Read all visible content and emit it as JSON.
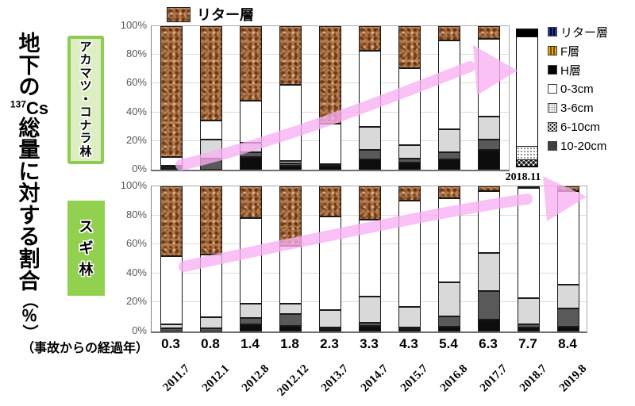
{
  "figure": {
    "y_axis_title": "地下の137Cs総量に対する割合（％）",
    "y_axis_title_parts": {
      "pre": "地下の",
      "isotope_sup": "137",
      "isotope_symbol": "Cs",
      "post": "総量に対する割合",
      "unit_open": "（",
      "unit_pct": "％",
      "unit_close": "）"
    },
    "x_axis_note": "（事故からの経過年）",
    "top_legend": {
      "label": "リター層"
    },
    "panel_labels": {
      "top": "アカマツ・コナラ林",
      "bottom": "スギ林"
    },
    "special_bar_date_label": "2018.11"
  },
  "axes": {
    "y_ticks": [
      "100%",
      "80%",
      "60%",
      "40%",
      "20%",
      "0%"
    ],
    "x_years_since": [
      "0.3",
      "0.8",
      "1.4",
      "1.8",
      "2.3",
      "3.3",
      "4.3",
      "5.4",
      "6.3",
      "7.7",
      "8.4"
    ],
    "x_dates": [
      "2011.7",
      "2012.1",
      "2012.8",
      "2012.12",
      "2013.7",
      "2014.7",
      "2015.7",
      "2016.8",
      "2017.7",
      "2018.7",
      "2019.8"
    ]
  },
  "legend_right": {
    "items": [
      {
        "label": "リター層",
        "swatch": "sw-litter"
      },
      {
        "label": "F層",
        "swatch": "sw-f"
      },
      {
        "label": "H層",
        "swatch": "sw-h"
      },
      {
        "label": "0-3cm",
        "swatch": "sw-d0"
      },
      {
        "label": "3-6cm",
        "swatch": "sw-d3"
      },
      {
        "label": "6-10cm",
        "swatch": "sw-d6"
      },
      {
        "label": "10-20cm",
        "swatch": "sw-d10"
      }
    ]
  },
  "colors": {
    "litter_brown": "#b5784a",
    "soil_0_3": "#ffffff",
    "soil_3_6": "#d9d9d9",
    "soil_6_10": "#595959",
    "soil_10_20": "#0d0d0d",
    "h_layer_black": "#000000",
    "arrow_pink": "#f9b0f3",
    "sugi_green": "#92d050",
    "akamatsu_fill": "#ddeec3",
    "akamatsu_border": "#8ecb52",
    "axis_gray": "#595959"
  },
  "chart_data": [
    {
      "type": "bar",
      "subtype": "stacked-100pct",
      "panel": "アカマツ・コナラ林",
      "ylabel": "地下の137Cs総量に対する割合（％）",
      "ylim": [
        0,
        100
      ],
      "grid": "horizontal 20% steps",
      "categories_dates": [
        "2011.7",
        "2012.1",
        "2012.8",
        "2012.12",
        "2013.7",
        "2014.7",
        "2015.7",
        "2016.8",
        "2017.7"
      ],
      "categories_years_since": [
        0.3,
        0.8,
        1.4,
        1.8,
        2.3,
        3.3,
        4.3,
        5.4,
        6.3
      ],
      "series": [
        {
          "name": "リター層",
          "key": "litter",
          "values": [
            91,
            66,
            52,
            41,
            68,
            17,
            29,
            10,
            9
          ]
        },
        {
          "name": "0-3cm",
          "key": "d0_3",
          "values": [
            6,
            13,
            29,
            53,
            28,
            53,
            54,
            62,
            54
          ]
        },
        {
          "name": "3-6cm",
          "key": "d3_6",
          "values": [
            1.5,
            13,
            7,
            1.5,
            1,
            16,
            9,
            16,
            16
          ]
        },
        {
          "name": "6-10cm",
          "key": "d6_10",
          "values": [
            1,
            8,
            3,
            1.5,
            0.5,
            7,
            3,
            5,
            7
          ]
        },
        {
          "name": "10-20cm",
          "key": "d10_20",
          "values": [
            0.5,
            0,
            9,
            3,
            2.5,
            7,
            5,
            7,
            14
          ]
        }
      ],
      "special_bar": {
        "date": "2018.11",
        "segments_bottom_to_top": [
          {
            "name": "10-20cm",
            "key": "sp_d10_20",
            "value": 0.5
          },
          {
            "name": "6-10cm",
            "key": "sp_d6_10",
            "value": 4.5
          },
          {
            "name": "3-6cm",
            "key": "sp_d3_6",
            "value": 10
          },
          {
            "name": "0-3cm",
            "key": "sp_d0_3",
            "value": 80
          },
          {
            "name": "H層",
            "key": "sp_h",
            "value": 5
          }
        ]
      }
    },
    {
      "type": "bar",
      "subtype": "stacked-100pct",
      "panel": "スギ林",
      "ylabel": "地下の137Cs総量に対する割合（％）",
      "ylim": [
        0,
        100
      ],
      "grid": "horizontal 20% steps",
      "categories_dates": [
        "2011.7",
        "2012.1",
        "2012.8",
        "2012.12",
        "2013.7",
        "2014.7",
        "2015.7",
        "2016.8",
        "2017.7",
        "2018.7",
        "2019.8"
      ],
      "categories_years_since": [
        0.3,
        0.8,
        1.4,
        1.8,
        2.3,
        3.3,
        4.3,
        5.4,
        6.3,
        7.7,
        8.4
      ],
      "series": [
        {
          "name": "リター層",
          "key": "litter",
          "values": [
            48,
            47,
            22,
            41,
            21,
            23,
            10,
            8,
            3,
            1,
            3
          ]
        },
        {
          "name": "0-3cm",
          "key": "d0_3",
          "values": [
            47,
            43,
            59,
            40,
            64,
            53,
            73,
            58,
            43,
            76,
            64.5
          ]
        },
        {
          "name": "3-6cm",
          "key": "d3_6",
          "values": [
            3,
            8,
            9.5,
            7,
            12,
            18,
            14,
            23.5,
            26,
            18,
            16.5
          ]
        },
        {
          "name": "6-10cm",
          "key": "d6_10",
          "values": [
            2,
            2,
            4.5,
            8,
            1.5,
            2,
            1.5,
            7,
            20,
            2.5,
            12.5
          ]
        },
        {
          "name": "10-20cm",
          "key": "d10_20",
          "values": [
            0,
            0,
            5,
            4,
            1.5,
            4,
            1.5,
            3.5,
            8,
            2.5,
            3.5
          ]
        }
      ]
    }
  ]
}
